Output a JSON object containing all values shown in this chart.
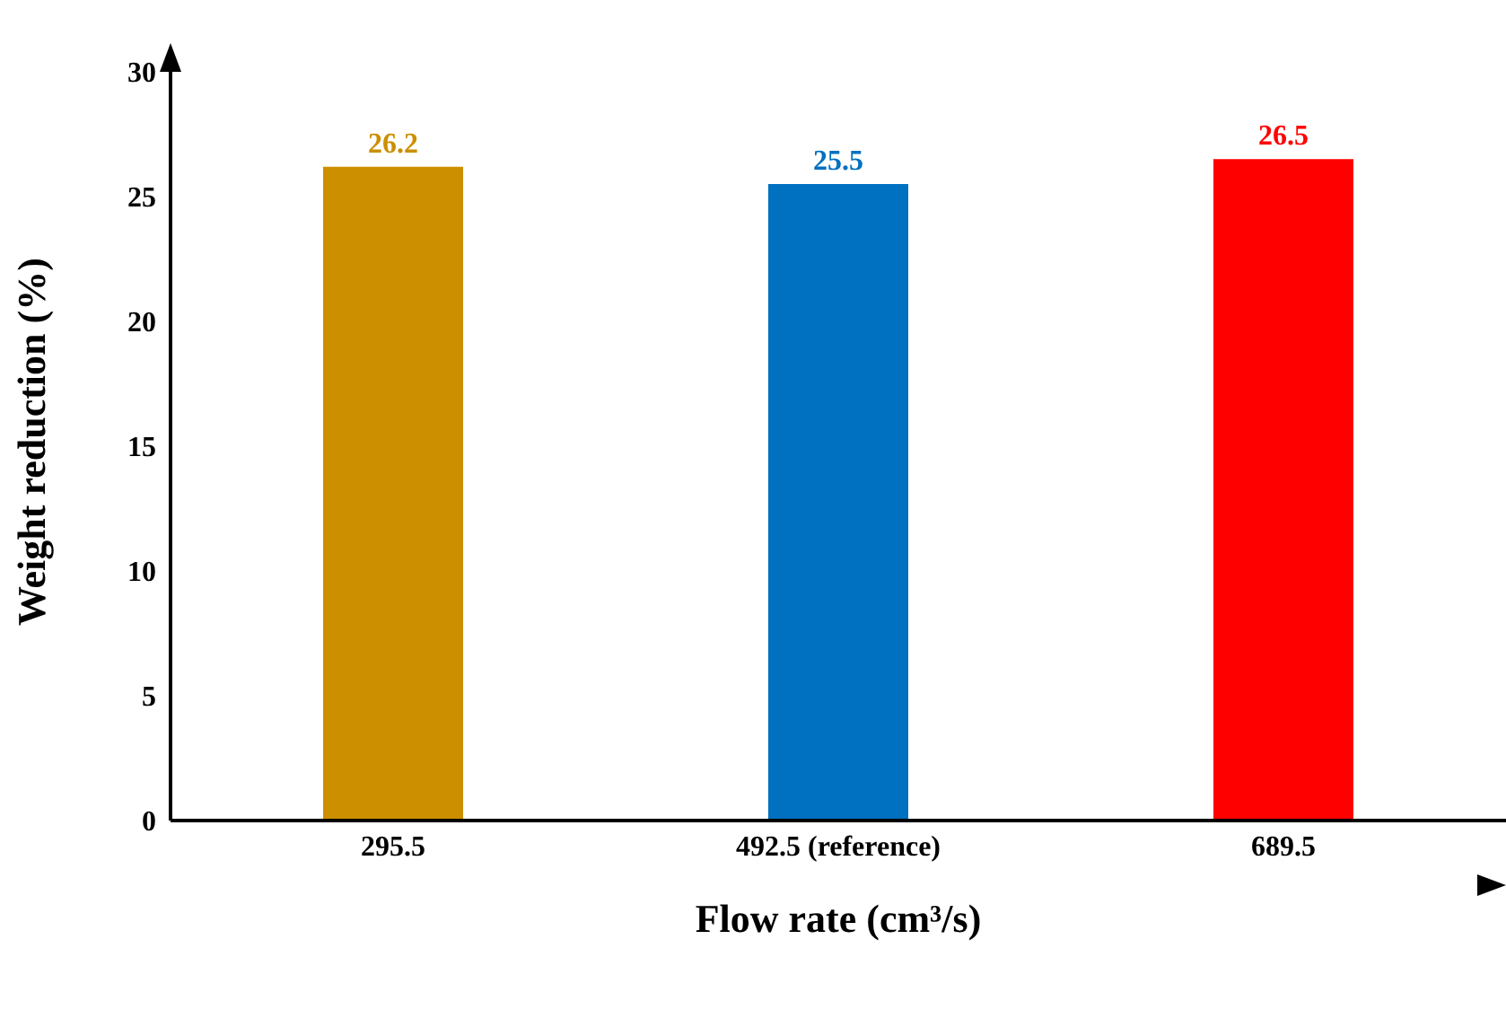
{
  "chart_data": {
    "type": "bar",
    "xlabel": "Flow rate (cm³/s)",
    "ylabel": "Weight reduction (%)",
    "categories": [
      "295.5",
      "492.5 (reference)",
      "689.5"
    ],
    "values": [
      26.2,
      25.5,
      26.5
    ],
    "colors": [
      "#cc8f00",
      "#0070c0",
      "#ff0000"
    ],
    "ylim": [
      0,
      30
    ],
    "yticks": [
      0,
      5,
      10,
      15,
      20,
      25,
      30
    ],
    "grid": false,
    "data_labels": true
  }
}
